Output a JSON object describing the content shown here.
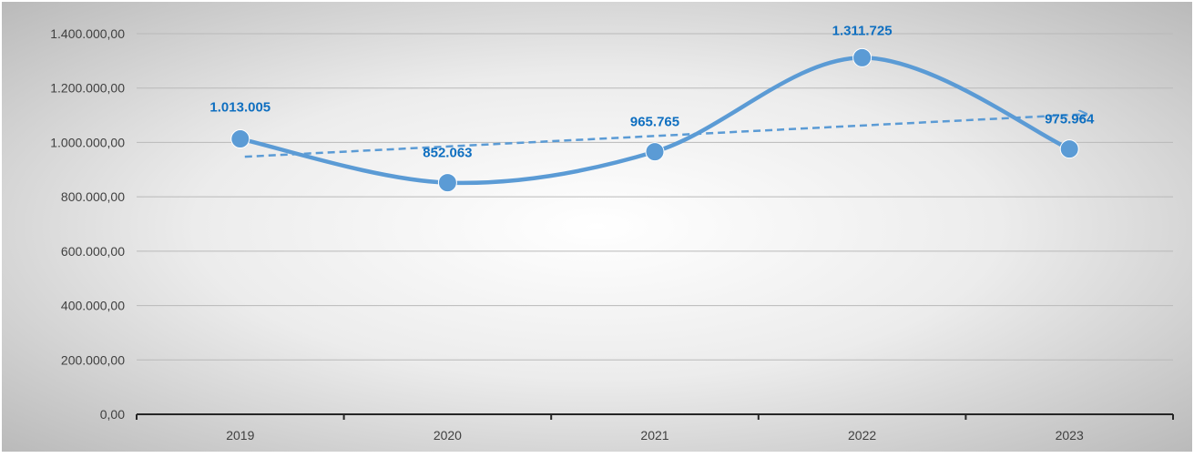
{
  "chart_data": {
    "type": "line",
    "title": "",
    "xlabel": "",
    "ylabel": "",
    "categories": [
      "2019",
      "2020",
      "2021",
      "2022",
      "2023"
    ],
    "series": [
      {
        "values": [
          1013005,
          852063,
          965765,
          1311725,
          975964
        ],
        "data_labels": [
          "1.013.005",
          "852.063",
          "965.765",
          "1.311.725",
          "975.964"
        ],
        "color": "#5b9bd5",
        "line_style": "smooth",
        "marker": "circle"
      }
    ],
    "trendline": {
      "type": "linear",
      "style": "dashed-arrow",
      "color": "#5b9bd5"
    },
    "ylim": [
      0,
      1400000
    ],
    "yticks": [
      0,
      200000,
      400000,
      600000,
      800000,
      1000000,
      1200000,
      1400000
    ],
    "ytick_labels": [
      "0,00",
      "200.000,00",
      "400.000,00",
      "600.000,00",
      "800.000,00",
      "1.000.000,00",
      "1.200.000,00",
      "1.400.000,00"
    ],
    "grid": true,
    "legend": "none",
    "background": "radial-gradient-gray"
  }
}
